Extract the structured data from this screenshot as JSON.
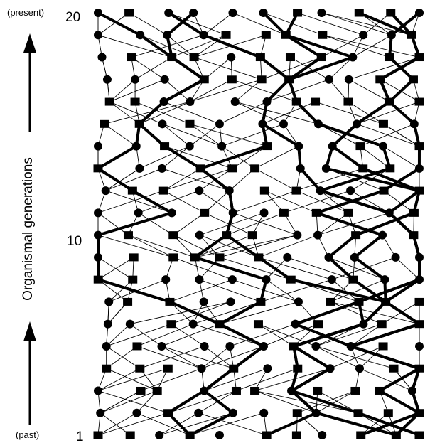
{
  "labels": {
    "present": "(present)",
    "past": "(past)",
    "tick_top": "20",
    "tick_mid": "10",
    "tick_bottom": "1",
    "y_axis": "Organismal generations"
  },
  "generations": 20,
  "columns": 11,
  "colors": {
    "ink": "#000000",
    "background": "#ffffff"
  }
}
